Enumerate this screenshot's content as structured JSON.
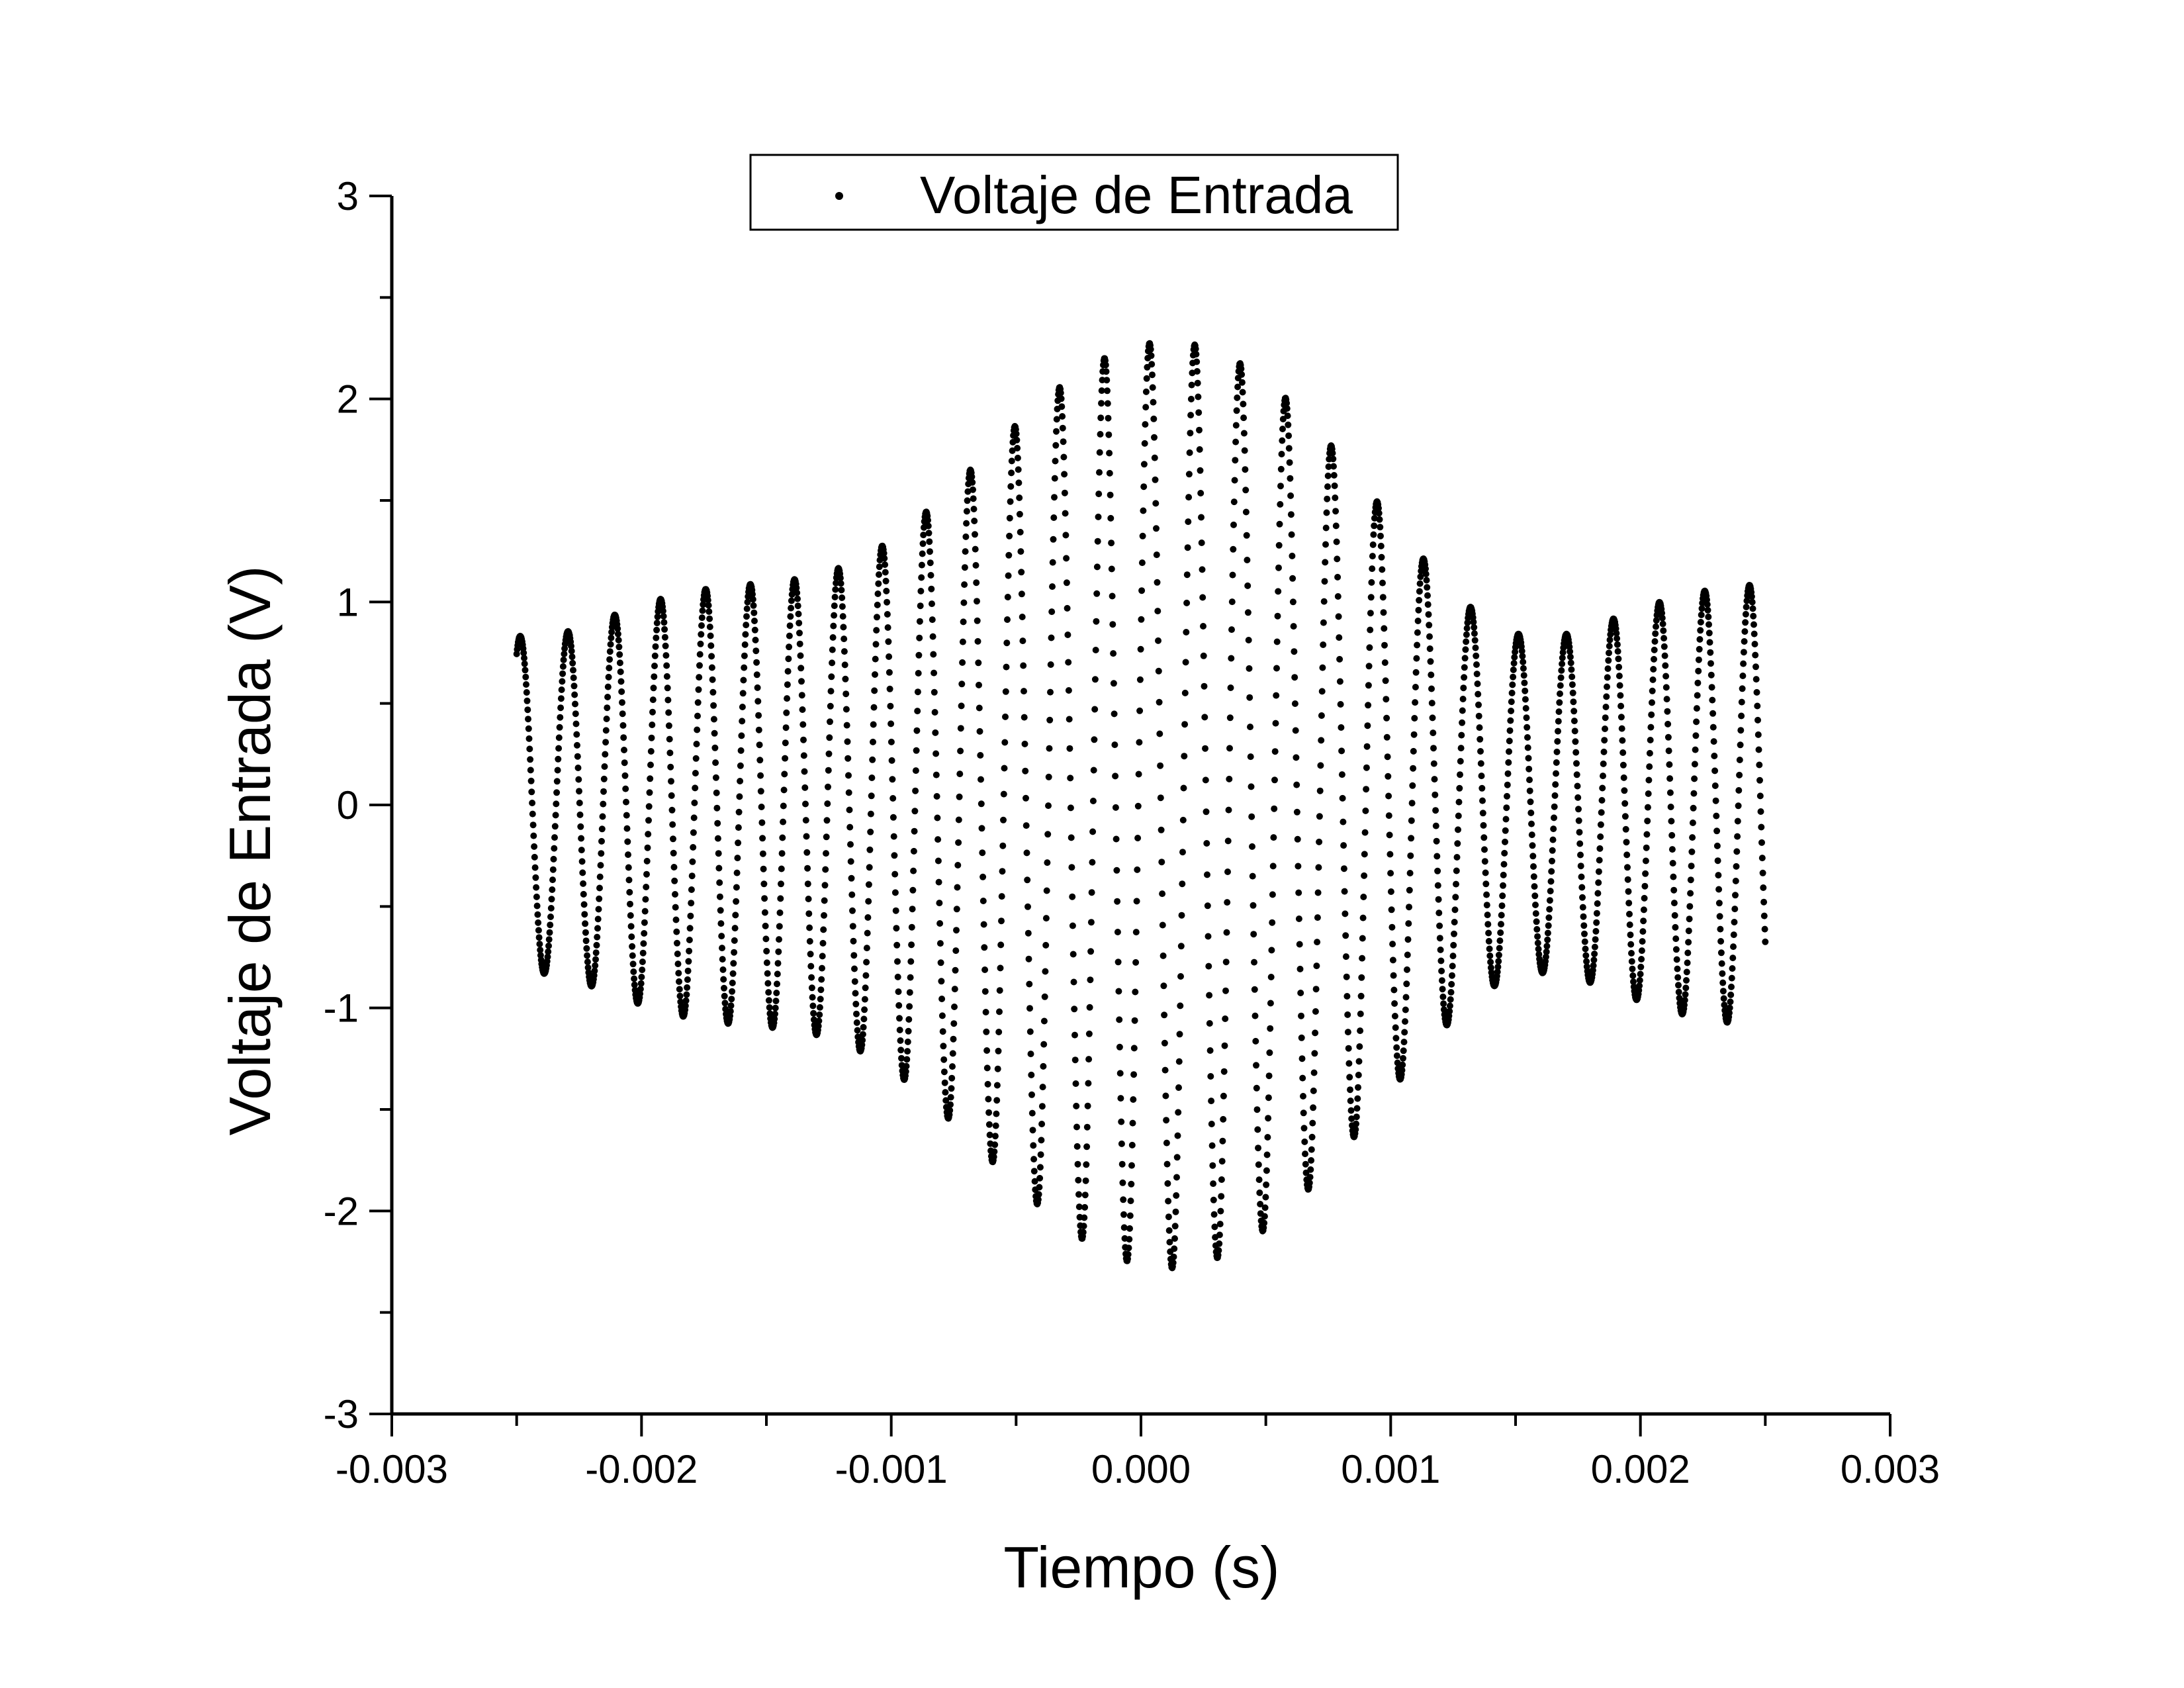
{
  "chart_data": {
    "type": "scatter",
    "xlabel": "Tiempo (s)",
    "ylabel": "Voltaje de Entrada (V)",
    "xlim": [
      -0.003,
      0.003
    ],
    "ylim": [
      -3,
      3
    ],
    "x_ticks": [
      -0.003,
      -0.002,
      -0.001,
      0.0,
      0.001,
      0.002,
      0.003
    ],
    "x_tick_labels": [
      "-0.003",
      "-0.002",
      "-0.001",
      "0.000",
      "0.001",
      "0.002",
      "0.003"
    ],
    "y_ticks": [
      -3,
      -2,
      -1,
      0,
      1,
      2,
      3
    ],
    "y_tick_labels": [
      "-3",
      "-2",
      "-1",
      "0",
      "1",
      "2",
      "3"
    ],
    "grid": false,
    "legend": {
      "position": "top-center"
    },
    "series": [
      {
        "name": "Voltaje de Entrada",
        "color": "#000000",
        "marker": "dot",
        "x_start": -0.0025,
        "x_end": 0.0025,
        "num_points": 2500,
        "model": "multi-sine sampled signal, amplitude about 2.5 V, cycle period about 0.000182 s, sample interval 0.000002 s"
      }
    ]
  }
}
